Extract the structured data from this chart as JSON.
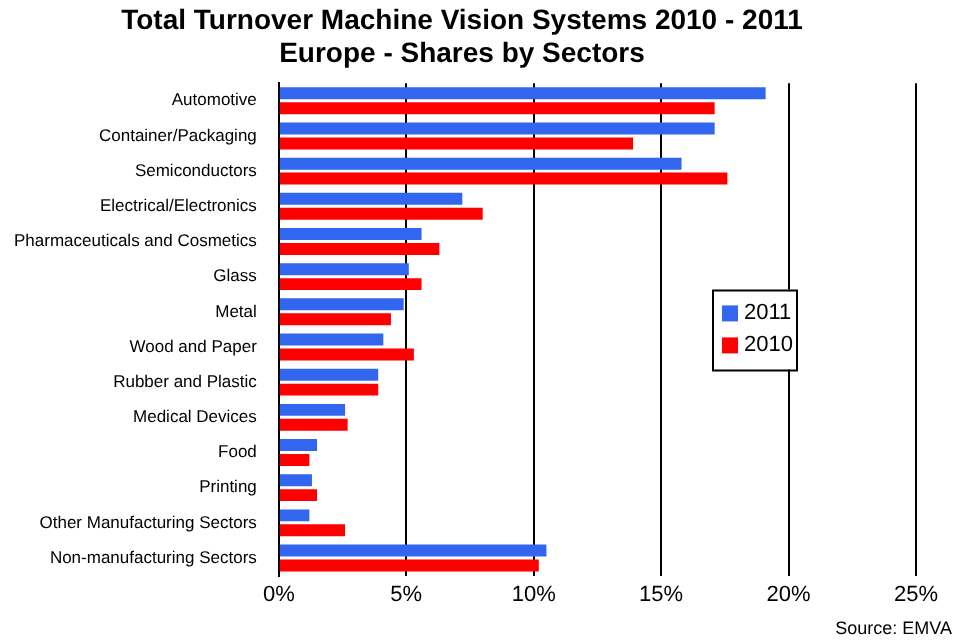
{
  "chart_data": {
    "type": "bar",
    "orientation": "horizontal",
    "title": "Total Turnover Machine Vision Systems 2010 - 2011",
    "subtitle": "Europe - Shares by Sectors",
    "categories": [
      "Automotive",
      "Container/Packaging",
      "Semiconductors",
      "Electrical/Electronics",
      "Pharmaceuticals and Cosmetics",
      "Glass",
      "Metal",
      "Wood and Paper",
      "Rubber and Plastic",
      "Medical Devices",
      "Food",
      "Printing",
      "Other Manufacturing Sectors",
      "Non-manufacturing Sectors"
    ],
    "series": [
      {
        "name": "2011",
        "color": "#3366ee",
        "values": [
          19.1,
          17.1,
          15.8,
          7.2,
          5.6,
          5.1,
          4.9,
          4.1,
          3.9,
          2.6,
          1.5,
          1.3,
          1.2,
          10.5
        ]
      },
      {
        "name": "2010",
        "color": "#ff0000",
        "values": [
          17.1,
          13.9,
          17.6,
          8.0,
          6.3,
          5.6,
          4.4,
          5.3,
          3.9,
          2.7,
          1.2,
          1.5,
          2.6,
          10.2
        ]
      }
    ],
    "xlim": [
      0,
      25
    ],
    "xticks": [
      {
        "value": 0,
        "label": "0%"
      },
      {
        "value": 5,
        "label": "5%"
      },
      {
        "value": 10,
        "label": "10%"
      },
      {
        "value": 15,
        "label": "15%"
      },
      {
        "value": 20,
        "label": "20%"
      },
      {
        "value": 25,
        "label": "25%"
      }
    ],
    "grid": "x",
    "legend": "right",
    "annotations": [
      "Source: EMVA"
    ]
  }
}
